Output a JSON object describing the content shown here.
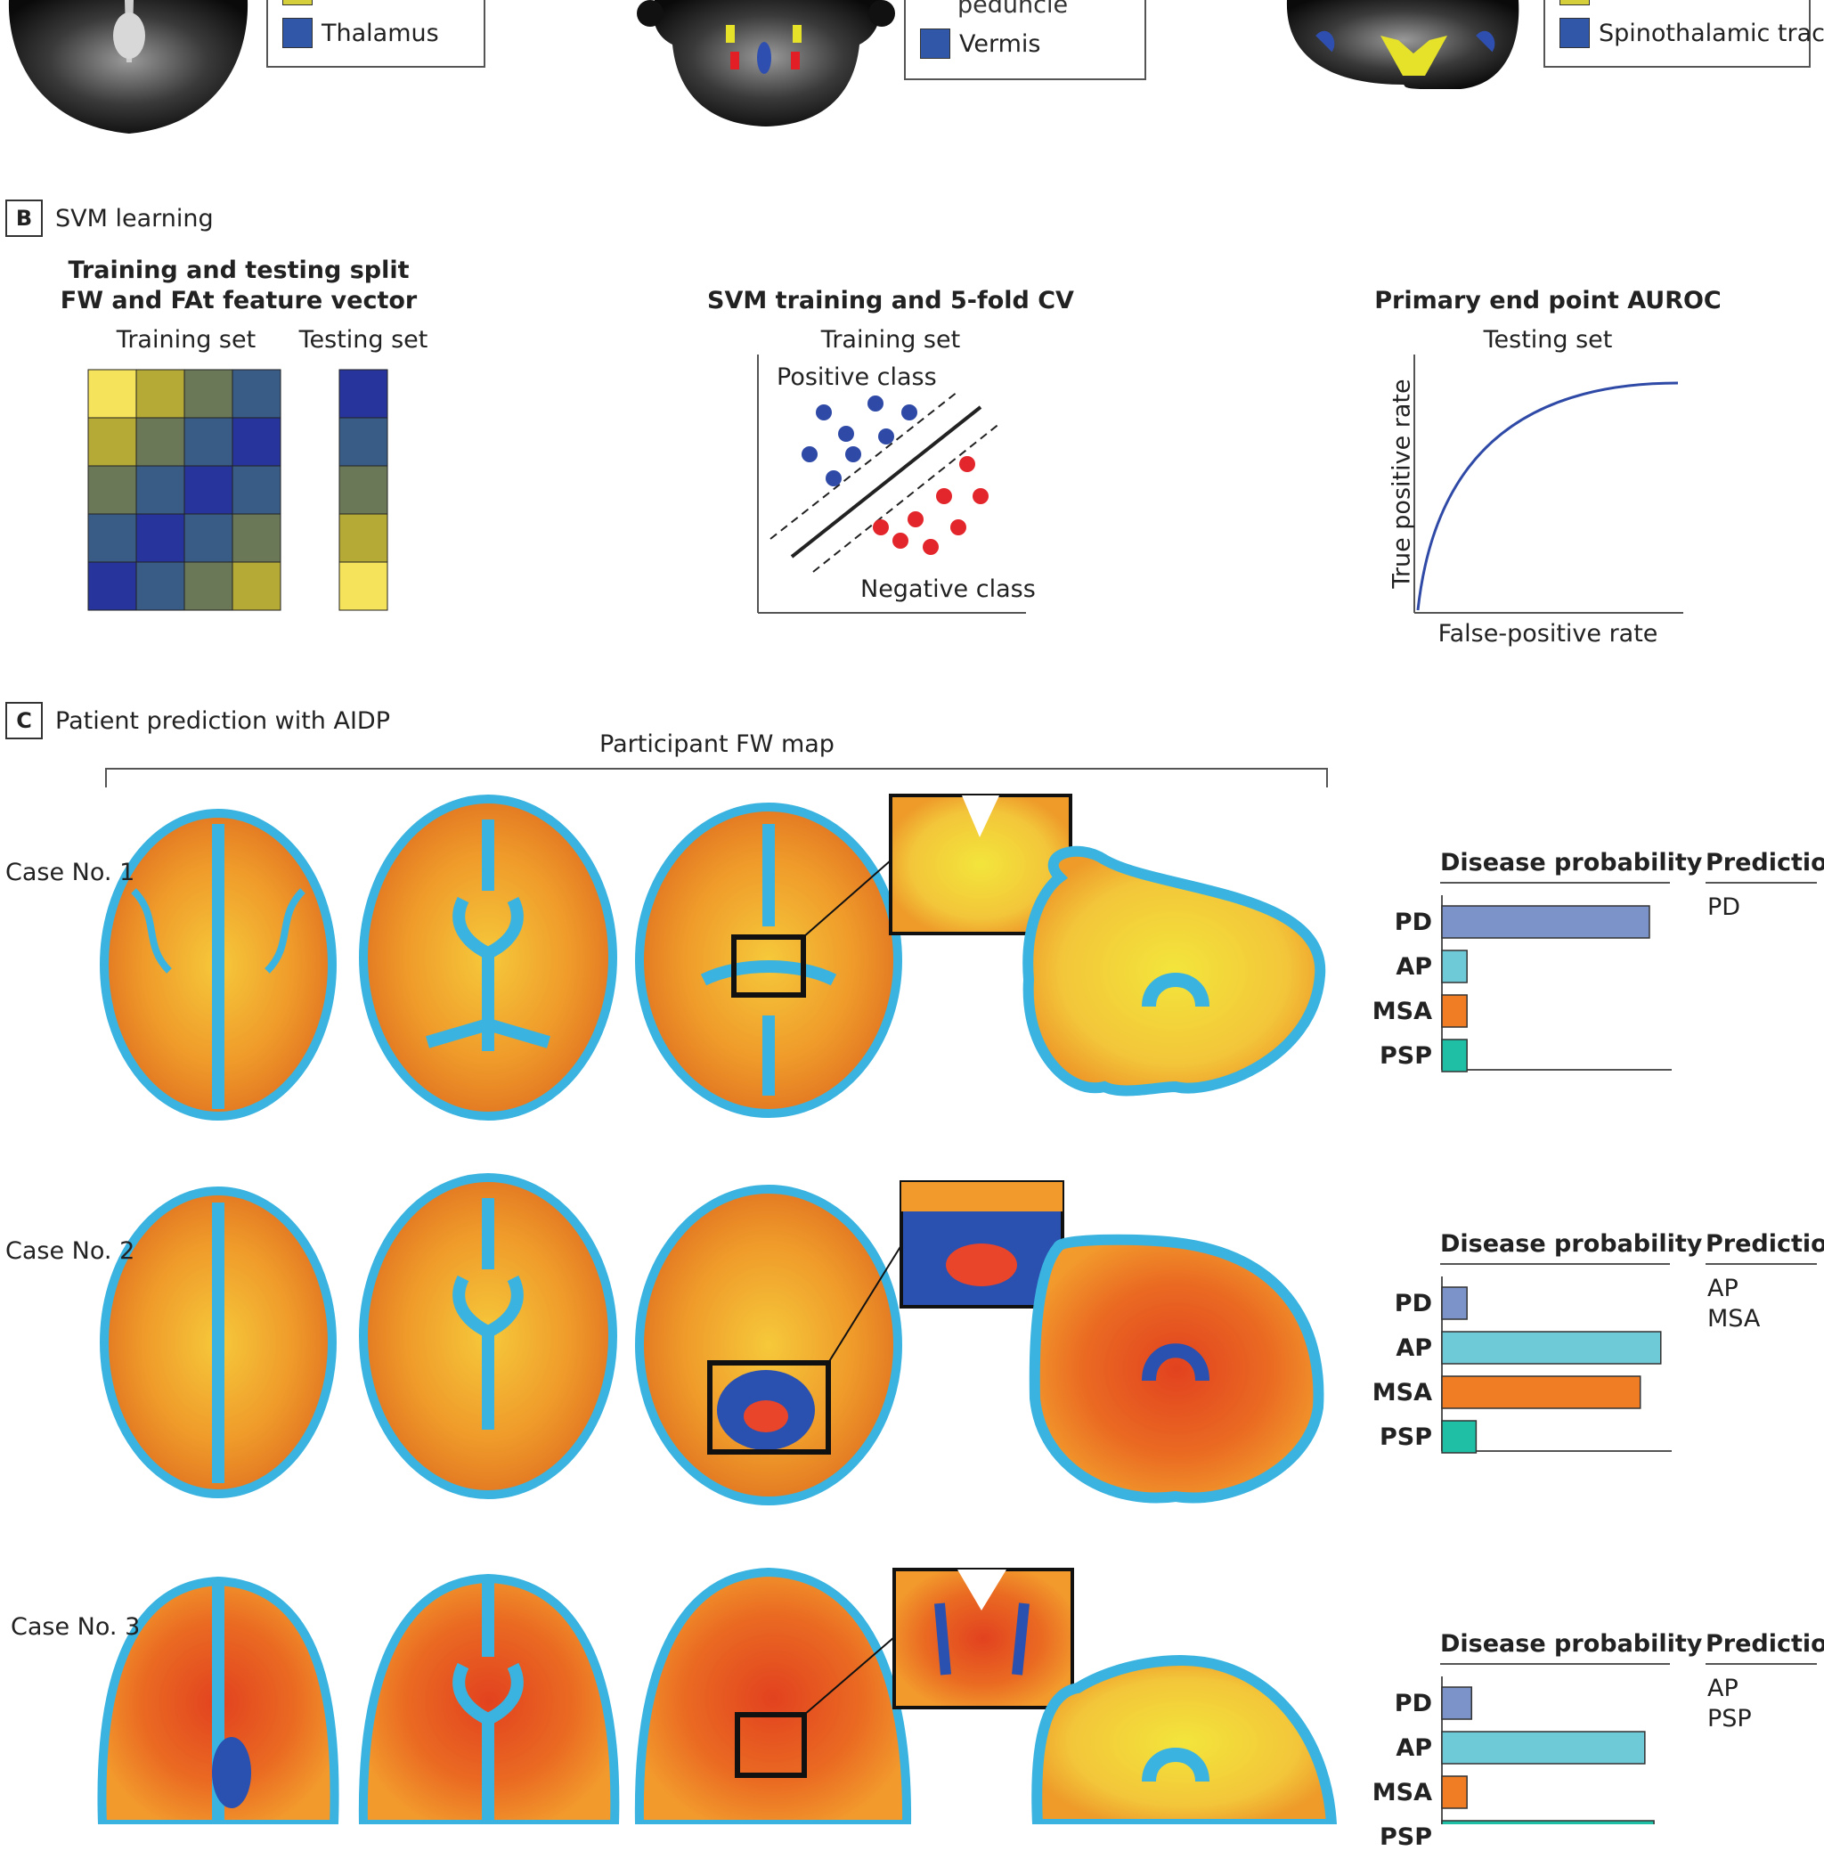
{
  "panel_a": {
    "legend_1": {
      "items": [
        {
          "label": "Thalamus",
          "color": "#3057a8"
        }
      ],
      "partial_swatch_color": "#d4cf3a"
    },
    "legend_2": {
      "partial_text": "peduncle",
      "items": [
        {
          "label": "Vermis",
          "color": "#3057a8"
        }
      ]
    },
    "legend_3": {
      "items": [
        {
          "label": "Spinothalamic tract",
          "color": "#3057a8"
        }
      ],
      "partial_swatch_color": "#d4cf3a"
    }
  },
  "panel_b": {
    "letter": "B",
    "title": "SVM learning",
    "split": {
      "heading_line1": "Training and testing split",
      "heading_line2": "FW and FAt feature vector",
      "training_label": "Training set",
      "testing_label": "Testing set",
      "training_grid": [
        [
          "#f5e35c",
          "#b5aa35",
          "#6b7858",
          "#385c86"
        ],
        [
          "#b5aa35",
          "#6b7858",
          "#385c86",
          "#26349c"
        ],
        [
          "#6b7858",
          "#385c86",
          "#26349c",
          "#385c86"
        ],
        [
          "#385c86",
          "#26349c",
          "#385c86",
          "#6b7858"
        ],
        [
          "#26349c",
          "#385c86",
          "#6b7858",
          "#b5aa35"
        ]
      ],
      "testing_column": [
        "#26349c",
        "#385c86",
        "#6b7858",
        "#b5aa35",
        "#f5e35c"
      ]
    },
    "svm": {
      "heading": "SVM training and 5-fold CV",
      "subheading": "Training set",
      "positive_label": "Positive class",
      "negative_label": "Negative class",
      "positive_color": "#2f4aa6",
      "negative_color": "#e3262b"
    },
    "auroc": {
      "heading": "Primary end point AUROC",
      "subheading": "Testing set",
      "ylabel": "True positive rate",
      "xlabel": "False-positive rate",
      "curve_color": "#2f4aa6"
    }
  },
  "panel_c": {
    "letter": "C",
    "title": "Patient prediction with AIDP",
    "map_label": "Participant FW map",
    "prob_heading": "Disease probability",
    "pred_heading": "Prediction",
    "categories": [
      "PD",
      "AP",
      "MSA",
      "PSP"
    ],
    "colors": {
      "PD": "#7b93c8",
      "AP": "#6ecad6",
      "MSA": "#f07c24",
      "PSP": "#1fbfa6"
    },
    "cases": [
      {
        "name": "Case No. 1",
        "probabilities": [
          0.91,
          0.11,
          0.11,
          0.11
        ],
        "prediction": [
          "PD"
        ]
      },
      {
        "name": "Case No. 2",
        "probabilities": [
          0.11,
          0.96,
          0.87,
          0.15
        ],
        "prediction": [
          "AP",
          "MSA"
        ]
      },
      {
        "name": "Case No. 3",
        "probabilities": [
          0.13,
          0.89,
          0.11,
          0.93
        ],
        "prediction": [
          "AP",
          "PSP"
        ]
      }
    ]
  }
}
